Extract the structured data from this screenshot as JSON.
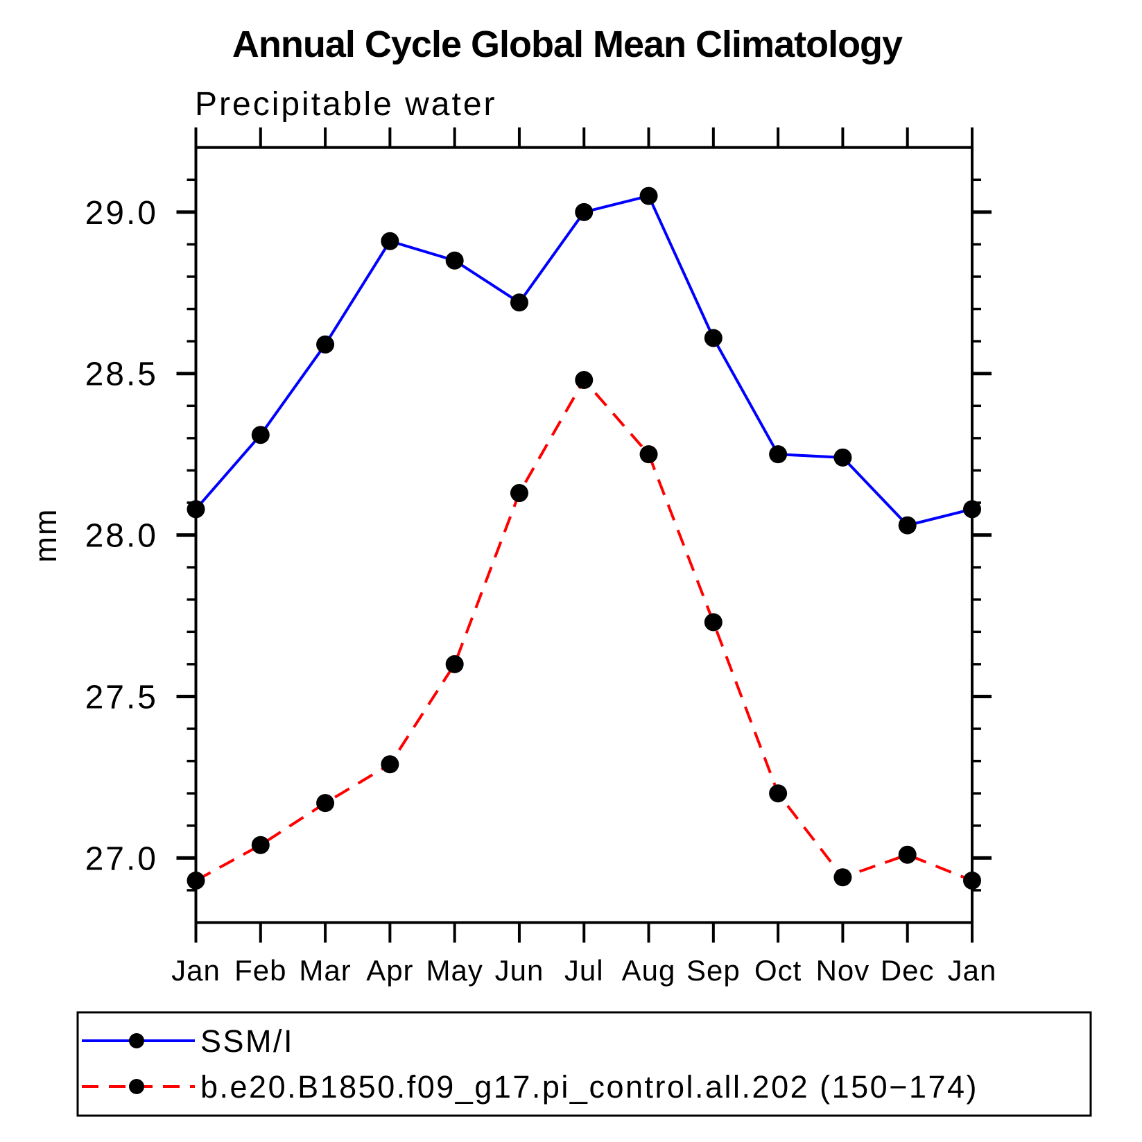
{
  "chart_data": {
    "type": "line",
    "title": "Annual Cycle Global Mean Climatology",
    "subtitle": "Precipitable water",
    "ylabel": "mm",
    "xlabel": "",
    "categories": [
      "Jan",
      "Feb",
      "Mar",
      "Apr",
      "May",
      "Jun",
      "Jul",
      "Aug",
      "Sep",
      "Oct",
      "Nov",
      "Dec",
      "Jan"
    ],
    "ylim": [
      26.8,
      29.2
    ],
    "y_major_ticks": [
      27.0,
      27.5,
      28.0,
      28.5,
      29.0
    ],
    "y_tick_labels": [
      "27.0",
      "27.5",
      "28.0",
      "28.5",
      "29.0"
    ],
    "y_minor_tick_step": 0.1,
    "grid": false,
    "legend_position": "bottom-left-box",
    "axis_color": "#000000",
    "marker_color": "#000000",
    "series": [
      {
        "name": "SSM/I",
        "color": "#0000ff",
        "line_style": "solid",
        "marker": "filled-circle",
        "values": [
          28.08,
          28.31,
          28.59,
          28.91,
          28.85,
          28.72,
          29.0,
          29.05,
          28.61,
          28.25,
          28.24,
          28.03,
          28.08
        ]
      },
      {
        "name": "b.e20.B1850.f09_g17.pi_control.all.202 (150−174)",
        "color": "#ff0000",
        "line_style": "dashed",
        "marker": "filled-circle",
        "values": [
          26.93,
          27.04,
          27.17,
          27.29,
          27.6,
          28.13,
          28.48,
          28.25,
          27.73,
          27.2,
          26.94,
          27.01,
          26.93
        ]
      }
    ]
  }
}
